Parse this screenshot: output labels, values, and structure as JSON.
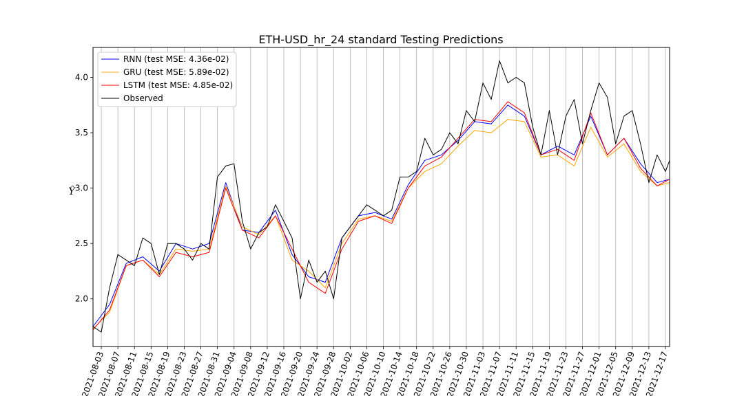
{
  "chart_data": {
    "type": "line",
    "title": "ETH-USD_hr_24 standard Testing Predictions",
    "xlabel": "",
    "ylabel": "Ŷ",
    "xlim": [
      "2021-08-01",
      "2021-12-18"
    ],
    "ylim": [
      1.57,
      4.27
    ],
    "yticks": [
      "2.0",
      "2.5",
      "3.0",
      "3.5",
      "4.0"
    ],
    "ytick_values": [
      2.0,
      2.5,
      3.0,
      3.5,
      4.0
    ],
    "xticks": [
      "2021-08-03",
      "2021-08-07",
      "2021-08-11",
      "2021-08-15",
      "2021-08-19",
      "2021-08-23",
      "2021-08-27",
      "2021-08-31",
      "2021-09-04",
      "2021-09-08",
      "2021-09-12",
      "2021-09-16",
      "2021-09-20",
      "2021-09-24",
      "2021-09-28",
      "2021-10-02",
      "2021-10-06",
      "2021-10-10",
      "2021-10-14",
      "2021-10-18",
      "2021-10-22",
      "2021-10-26",
      "2021-10-30",
      "2021-11-03",
      "2021-11-07",
      "2021-11-11",
      "2021-11-15",
      "2021-11-19",
      "2021-11-23",
      "2021-11-27",
      "2021-12-01",
      "2021-12-05",
      "2021-12-09",
      "2021-12-13",
      "2021-12-17"
    ],
    "grid": "vertical",
    "legend": "upper-left",
    "series": [
      {
        "name": "RNN (test MSE: 4.36e-02)",
        "color": "#0000ff",
        "x": [
          "2021-08-01",
          "2021-08-05",
          "2021-08-09",
          "2021-08-13",
          "2021-08-17",
          "2021-08-21",
          "2021-08-25",
          "2021-08-29",
          "2021-09-02",
          "2021-09-06",
          "2021-09-10",
          "2021-09-14",
          "2021-09-18",
          "2021-09-22",
          "2021-09-26",
          "2021-09-30",
          "2021-10-04",
          "2021-10-08",
          "2021-10-12",
          "2021-10-16",
          "2021-10-20",
          "2021-10-24",
          "2021-10-28",
          "2021-11-01",
          "2021-11-05",
          "2021-11-09",
          "2021-11-13",
          "2021-11-17",
          "2021-11-21",
          "2021-11-25",
          "2021-11-29",
          "2021-12-03",
          "2021-12-07",
          "2021-12-11",
          "2021-12-15",
          "2021-12-18"
        ],
        "y": [
          1.75,
          1.95,
          2.32,
          2.38,
          2.25,
          2.5,
          2.45,
          2.5,
          3.05,
          2.62,
          2.6,
          2.8,
          2.4,
          2.2,
          2.15,
          2.55,
          2.75,
          2.78,
          2.72,
          3.03,
          3.25,
          3.3,
          3.43,
          3.6,
          3.58,
          3.75,
          3.65,
          3.3,
          3.38,
          3.3,
          3.65,
          3.3,
          3.45,
          3.22,
          3.05,
          3.08
        ]
      },
      {
        "name": "GRU (test MSE: 5.89e-02)",
        "color": "#ffa500",
        "x": [
          "2021-08-01",
          "2021-08-05",
          "2021-08-09",
          "2021-08-13",
          "2021-08-17",
          "2021-08-21",
          "2021-08-25",
          "2021-08-29",
          "2021-09-02",
          "2021-09-06",
          "2021-09-10",
          "2021-09-14",
          "2021-09-18",
          "2021-09-22",
          "2021-09-26",
          "2021-09-30",
          "2021-10-04",
          "2021-10-08",
          "2021-10-12",
          "2021-10-16",
          "2021-10-20",
          "2021-10-24",
          "2021-10-28",
          "2021-11-01",
          "2021-11-05",
          "2021-11-09",
          "2021-11-13",
          "2021-11-17",
          "2021-11-21",
          "2021-11-25",
          "2021-11-29",
          "2021-12-03",
          "2021-12-07",
          "2021-12-11",
          "2021-12-15",
          "2021-12-18"
        ],
        "y": [
          1.73,
          1.88,
          2.3,
          2.35,
          2.22,
          2.45,
          2.43,
          2.45,
          3.02,
          2.65,
          2.58,
          2.75,
          2.35,
          2.25,
          2.1,
          2.5,
          2.72,
          2.75,
          2.7,
          3.0,
          3.15,
          3.22,
          3.38,
          3.52,
          3.5,
          3.62,
          3.6,
          3.28,
          3.3,
          3.2,
          3.55,
          3.28,
          3.4,
          3.15,
          3.02,
          3.05
        ]
      },
      {
        "name": "LSTM (test MSE: 4.85e-02)",
        "color": "#ff0000",
        "x": [
          "2021-08-01",
          "2021-08-05",
          "2021-08-09",
          "2021-08-13",
          "2021-08-17",
          "2021-08-21",
          "2021-08-25",
          "2021-08-29",
          "2021-09-02",
          "2021-09-06",
          "2021-09-10",
          "2021-09-14",
          "2021-09-18",
          "2021-09-22",
          "2021-09-26",
          "2021-09-30",
          "2021-10-04",
          "2021-10-08",
          "2021-10-12",
          "2021-10-16",
          "2021-10-20",
          "2021-10-24",
          "2021-10-28",
          "2021-11-01",
          "2021-11-05",
          "2021-11-09",
          "2021-11-13",
          "2021-11-17",
          "2021-11-21",
          "2021-11-25",
          "2021-11-29",
          "2021-12-03",
          "2021-12-07",
          "2021-12-11",
          "2021-12-15",
          "2021-12-18"
        ],
        "y": [
          1.72,
          1.9,
          2.3,
          2.35,
          2.2,
          2.42,
          2.38,
          2.42,
          3.0,
          2.62,
          2.55,
          2.75,
          2.45,
          2.15,
          2.05,
          2.45,
          2.7,
          2.75,
          2.68,
          3.0,
          3.2,
          3.28,
          3.45,
          3.62,
          3.6,
          3.78,
          3.68,
          3.3,
          3.35,
          3.25,
          3.68,
          3.3,
          3.45,
          3.18,
          3.02,
          3.08
        ]
      },
      {
        "name": "Observed",
        "color": "#000000",
        "x": [
          "2021-08-01",
          "2021-08-03",
          "2021-08-05",
          "2021-08-07",
          "2021-08-09",
          "2021-08-11",
          "2021-08-13",
          "2021-08-15",
          "2021-08-17",
          "2021-08-19",
          "2021-08-21",
          "2021-08-23",
          "2021-08-25",
          "2021-08-27",
          "2021-08-29",
          "2021-08-31",
          "2021-09-02",
          "2021-09-04",
          "2021-09-06",
          "2021-09-08",
          "2021-09-10",
          "2021-09-12",
          "2021-09-14",
          "2021-09-16",
          "2021-09-18",
          "2021-09-20",
          "2021-09-22",
          "2021-09-24",
          "2021-09-26",
          "2021-09-28",
          "2021-09-30",
          "2021-10-02",
          "2021-10-04",
          "2021-10-06",
          "2021-10-08",
          "2021-10-10",
          "2021-10-12",
          "2021-10-14",
          "2021-10-16",
          "2021-10-18",
          "2021-10-20",
          "2021-10-22",
          "2021-10-24",
          "2021-10-26",
          "2021-10-28",
          "2021-10-30",
          "2021-11-01",
          "2021-11-03",
          "2021-11-05",
          "2021-11-07",
          "2021-11-09",
          "2021-11-11",
          "2021-11-13",
          "2021-11-15",
          "2021-11-17",
          "2021-11-19",
          "2021-11-21",
          "2021-11-23",
          "2021-11-25",
          "2021-11-27",
          "2021-11-29",
          "2021-12-01",
          "2021-12-03",
          "2021-12-05",
          "2021-12-07",
          "2021-12-09",
          "2021-12-11",
          "2021-12-13",
          "2021-12-15",
          "2021-12-17",
          "2021-12-18"
        ],
        "y": [
          1.75,
          1.7,
          2.1,
          2.4,
          2.35,
          2.3,
          2.55,
          2.5,
          2.22,
          2.5,
          2.5,
          2.45,
          2.35,
          2.5,
          2.45,
          3.1,
          3.2,
          3.22,
          2.7,
          2.45,
          2.6,
          2.65,
          2.85,
          2.7,
          2.55,
          2.0,
          2.35,
          2.15,
          2.25,
          2.0,
          2.55,
          2.65,
          2.75,
          2.85,
          2.8,
          2.75,
          2.8,
          3.1,
          3.1,
          3.15,
          3.45,
          3.3,
          3.35,
          3.5,
          3.4,
          3.7,
          3.6,
          3.95,
          3.8,
          4.15,
          3.95,
          4.0,
          3.95,
          3.55,
          3.3,
          3.7,
          3.3,
          3.65,
          3.8,
          3.4,
          3.7,
          3.95,
          3.82,
          3.4,
          3.65,
          3.7,
          3.4,
          3.05,
          3.3,
          3.15,
          3.25
        ]
      }
    ]
  }
}
